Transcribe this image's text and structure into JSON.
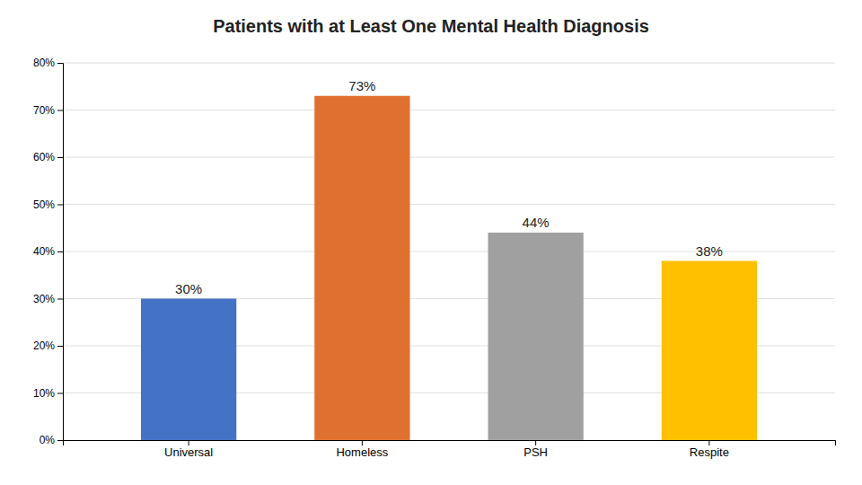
{
  "chart_data": {
    "type": "bar",
    "title": "Patients with at Least One Mental Health Diagnosis",
    "categories": [
      "Universal",
      "Homeless",
      "PSH",
      "Respite"
    ],
    "values": [
      30,
      73,
      44,
      38
    ],
    "value_labels": [
      "30%",
      "73%",
      "44%",
      "38%"
    ],
    "colors": [
      "#4472C4",
      "#E07030",
      "#A0A0A0",
      "#FFC000"
    ],
    "ylim": [
      0,
      80
    ],
    "yticks": [
      {
        "value": 0,
        "label": "0%"
      },
      {
        "value": 10,
        "label": "10%"
      },
      {
        "value": 20,
        "label": "20%"
      },
      {
        "value": 30,
        "label": "30%"
      },
      {
        "value": 40,
        "label": "40%"
      },
      {
        "value": 50,
        "label": "50%"
      },
      {
        "value": 60,
        "label": "60%"
      },
      {
        "value": 70,
        "label": "70%"
      },
      {
        "value": 80,
        "label": "80%"
      }
    ],
    "grid": true,
    "data_labels": true
  }
}
